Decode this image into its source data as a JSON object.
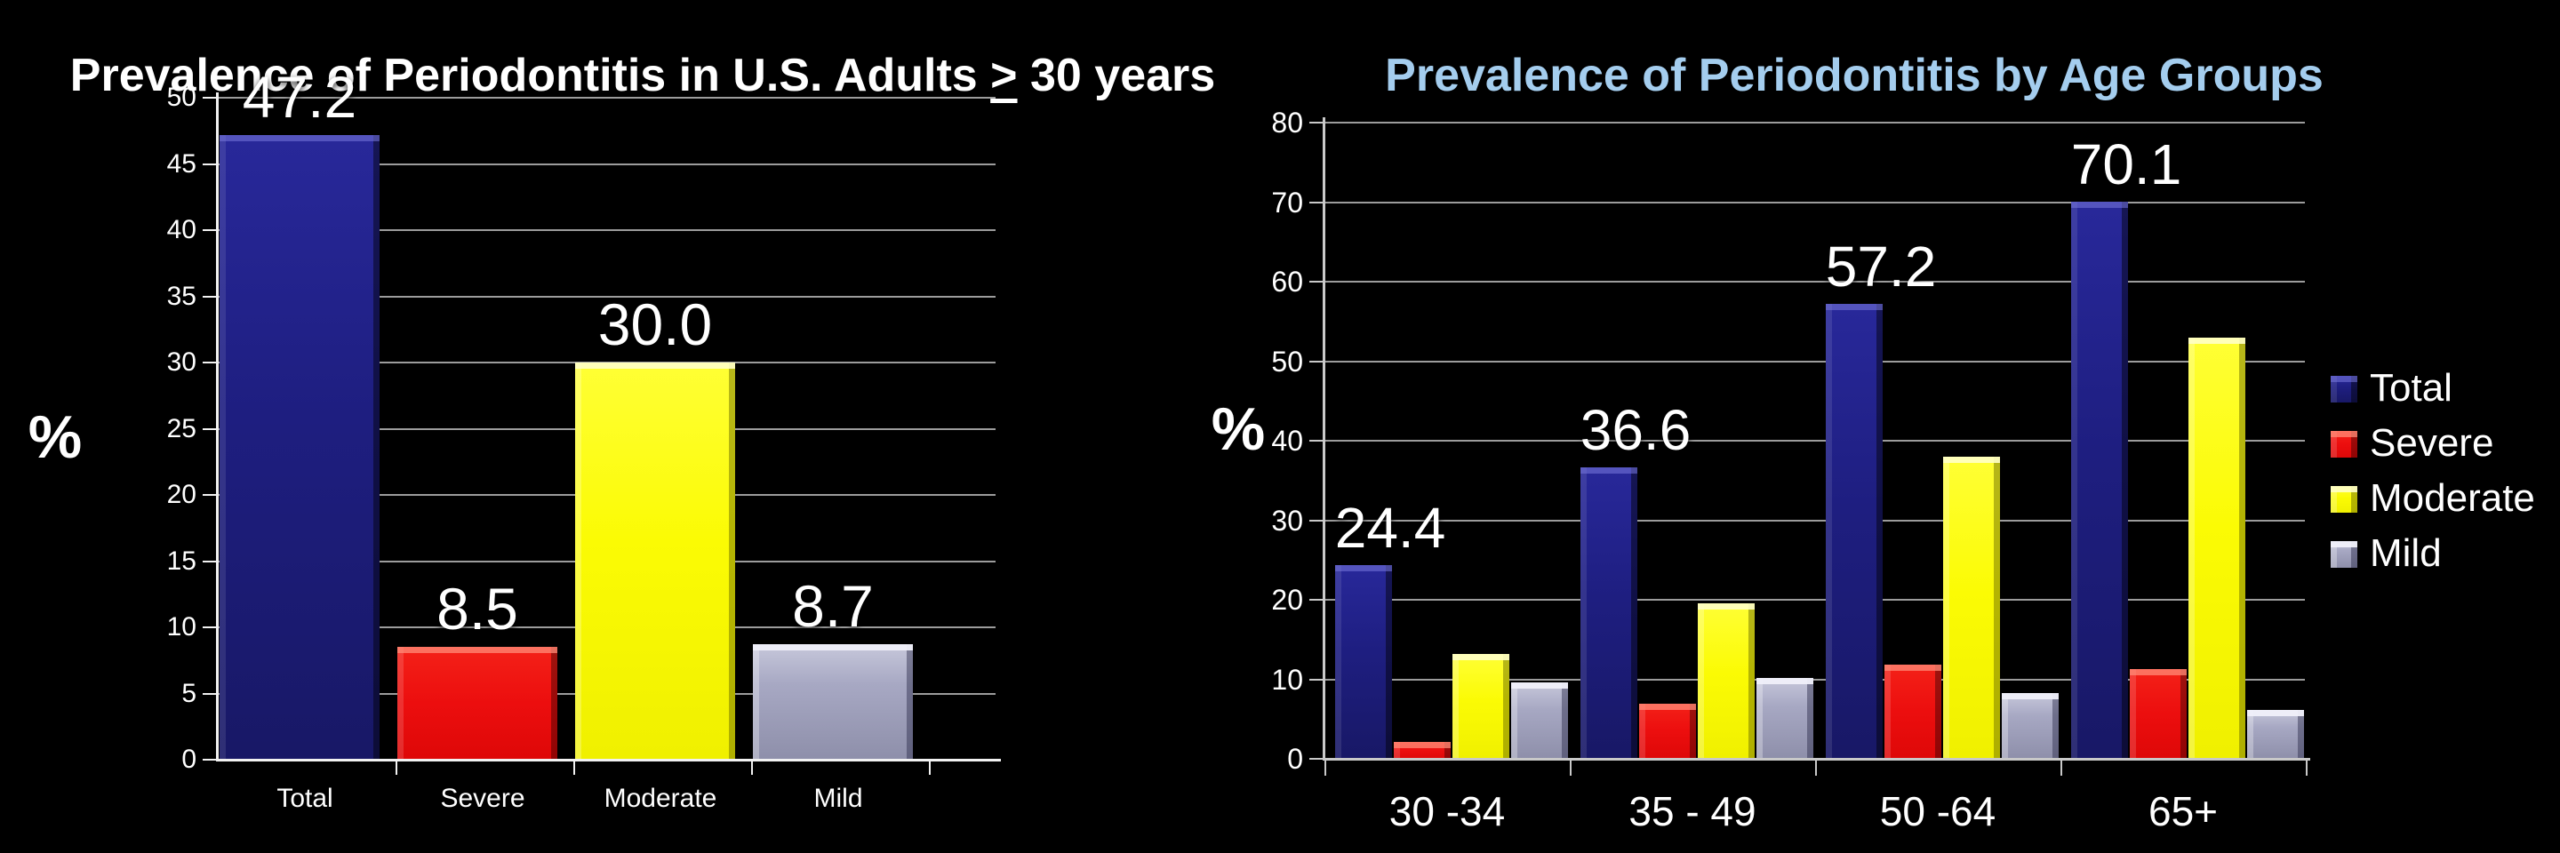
{
  "slide": {
    "background": "#000000"
  },
  "colors": {
    "total": "#1E1E7E",
    "severe": "#EE1111",
    "moderate": "#FFFF00",
    "mild": "#A2A3BE",
    "grid": "#9C9C9C",
    "axis_left": "#F2F2F2",
    "axis_right": "#C9C9C9",
    "text": "#FFFFFF",
    "right_title": "#A4CDEE"
  },
  "chart_data": [
    {
      "type": "bar",
      "title": {
        "prefix": "Prevalence of Periodontitis in U.S. Adults ",
        "symbol": ">",
        "suffix": " 30 years"
      },
      "title_color": "#FFFFFF",
      "ylabel": "%",
      "ylim": [
        0,
        50
      ],
      "ytick_step": 5,
      "yticks": [
        0,
        5,
        10,
        15,
        20,
        25,
        30,
        35,
        40,
        45,
        50
      ],
      "grid": true,
      "categories": [
        "Total",
        "Severe",
        "Moderate",
        "Mild"
      ],
      "values": [
        47.2,
        8.5,
        30.0,
        8.7
      ],
      "bar_labels": [
        "47.2",
        "8.5",
        "30.0",
        "8.7"
      ],
      "bar_color_keys": [
        "total",
        "severe",
        "moderate",
        "mild"
      ]
    },
    {
      "type": "grouped-bar",
      "title": {
        "text": "Prevalence of Periodontitis by Age Groups"
      },
      "title_color": "#A4CDEE",
      "ylabel": "%",
      "ylim": [
        0,
        80
      ],
      "ytick_step": 10,
      "yticks": [
        0,
        10,
        20,
        30,
        40,
        50,
        60,
        70,
        80
      ],
      "grid": true,
      "categories": [
        "30 -34",
        "35 - 49",
        "50 -64",
        "65+"
      ],
      "series": [
        {
          "name": "Total",
          "color_key": "total",
          "values": [
            24.4,
            36.6,
            57.2,
            70.1
          ],
          "labels": [
            "24.4",
            "36.6",
            "57.2",
            "70.1"
          ]
        },
        {
          "name": "Severe",
          "color_key": "severe",
          "values": [
            2.1,
            6.9,
            11.8,
            11.3
          ]
        },
        {
          "name": "Moderate",
          "color_key": "moderate",
          "values": [
            13.2,
            19.6,
            38.0,
            53.0
          ]
        },
        {
          "name": "Mild",
          "color_key": "mild",
          "values": [
            9.6,
            10.2,
            8.3,
            6.1
          ]
        }
      ],
      "legend": {
        "position": "right",
        "entries": [
          "Total",
          "Severe",
          "Moderate",
          "Mild"
        ]
      }
    }
  ]
}
